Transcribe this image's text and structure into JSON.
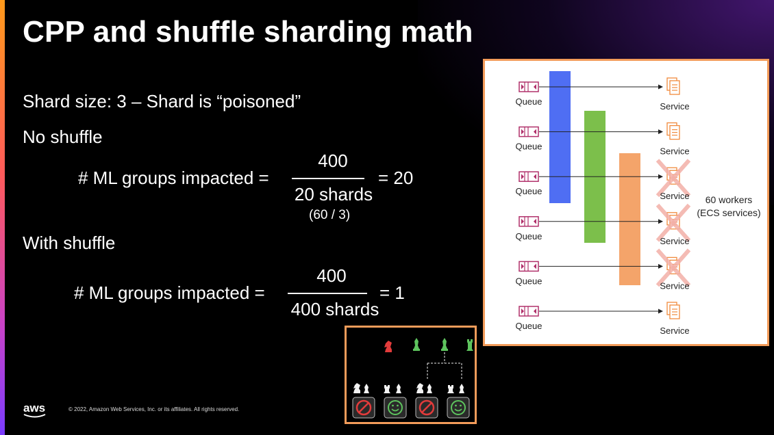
{
  "slide": {
    "title": "CPP and shuffle sharding math",
    "shard_line": "Shard size: 3 – Shard is “poisoned”",
    "no_shuffle": {
      "heading": "No shuffle",
      "label": "# ML groups impacted =",
      "numerator": "400",
      "denominator": "20 shards",
      "result": "= 20",
      "note": "(60 / 3)"
    },
    "with_shuffle": {
      "heading": "With shuffle",
      "label": "# ML groups impacted =",
      "numerator": "400",
      "denominator": "400 shards",
      "result": "=  1"
    },
    "footer": "© 2022, Amazon Web Services, Inc. or its affiliates. All rights reserved.",
    "logo_text": "aws"
  },
  "diagram": {
    "queue_label": "Queue",
    "service_label": "Service",
    "workers_label_1": "60 workers",
    "workers_label_2": "(ECS services)",
    "rows": [
      {
        "queue": "Queue",
        "service": "Service",
        "crossed": false
      },
      {
        "queue": "Queue",
        "service": "Service",
        "crossed": false
      },
      {
        "queue": "Queue",
        "service": "Service",
        "crossed": true
      },
      {
        "queue": "Queue",
        "service": "Service",
        "crossed": true
      },
      {
        "queue": "Queue",
        "service": "Service",
        "crossed": true
      },
      {
        "queue": "Queue",
        "service": "Service",
        "crossed": false
      }
    ],
    "colors": {
      "blue": "#4f6ef3",
      "green": "#7cbf4b",
      "orange": "#f4a46a",
      "queue": "#b0306a",
      "service": "#f08a3c",
      "cross": "#f3b0a8"
    }
  },
  "mini": {
    "top_pieces": [
      "red-knight-icon",
      "green-bishop-icon",
      "green-bishop-icon",
      "green-rook-icon"
    ],
    "outcomes": [
      "blocked-icon",
      "smile-icon",
      "blocked-icon",
      "smile-icon"
    ]
  }
}
